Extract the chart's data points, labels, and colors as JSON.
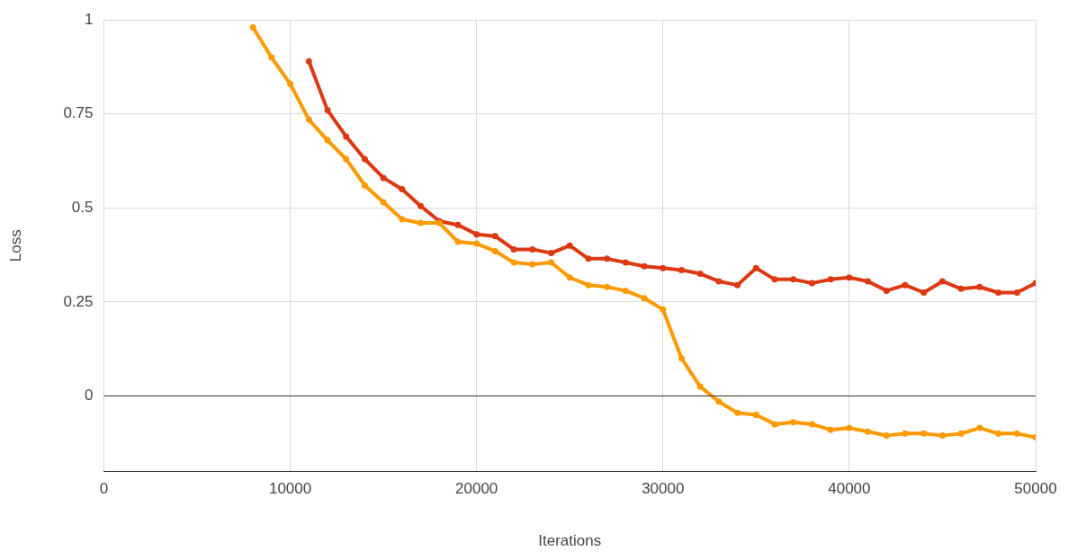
{
  "chart_data": {
    "type": "line",
    "xlabel": "Iterations",
    "ylabel": "Loss",
    "xlim": [
      0,
      50000
    ],
    "xticks": [
      0,
      10000,
      20000,
      30000,
      40000,
      50000
    ],
    "ylim": [
      -0.2,
      1
    ],
    "yticks": [
      0,
      0.25,
      0.5,
      0.75,
      1
    ],
    "grid": true,
    "legend": false,
    "marker": "circle",
    "line_style": "solid",
    "series": [
      {
        "color": "#ff9900",
        "x": [
          8000,
          9000,
          10000,
          11000,
          12000,
          13000,
          14000,
          15000,
          16000,
          17000,
          18000,
          19000,
          20000,
          21000,
          22000,
          23000,
          24000,
          25000,
          26000,
          27000,
          28000,
          29000,
          30000,
          31000,
          32000,
          33000,
          34000,
          35000,
          36000,
          37000,
          38000,
          39000,
          40000,
          41000,
          42000,
          43000,
          44000,
          45000,
          46000,
          47000,
          48000,
          49000,
          50000
        ],
        "values": [
          0.98,
          0.9,
          0.83,
          0.735,
          0.68,
          0.63,
          0.56,
          0.515,
          0.47,
          0.46,
          0.46,
          0.41,
          0.405,
          0.385,
          0.355,
          0.35,
          0.355,
          0.315,
          0.295,
          0.29,
          0.28,
          0.26,
          0.23,
          0.1,
          0.025,
          -0.015,
          -0.045,
          -0.05,
          -0.075,
          -0.07,
          -0.075,
          -0.09,
          -0.085,
          -0.095,
          -0.105,
          -0.1,
          -0.1,
          -0.105,
          -0.1,
          -0.085,
          -0.1,
          -0.1,
          -0.11
        ]
      },
      {
        "color": "#dc3912",
        "x": [
          11000,
          12000,
          13000,
          14000,
          15000,
          16000,
          17000,
          18000,
          19000,
          20000,
          21000,
          22000,
          23000,
          24000,
          25000,
          26000,
          27000,
          28000,
          29000,
          30000,
          31000,
          32000,
          33000,
          34000,
          35000,
          36000,
          37000,
          38000,
          39000,
          40000,
          41000,
          42000,
          43000,
          44000,
          45000,
          46000,
          47000,
          48000,
          49000,
          50000
        ],
        "values": [
          0.89,
          0.76,
          0.69,
          0.63,
          0.58,
          0.55,
          0.505,
          0.465,
          0.455,
          0.43,
          0.425,
          0.39,
          0.39,
          0.38,
          0.4,
          0.365,
          0.365,
          0.355,
          0.345,
          0.34,
          0.335,
          0.325,
          0.305,
          0.295,
          0.34,
          0.31,
          0.31,
          0.3,
          0.31,
          0.315,
          0.305,
          0.28,
          0.295,
          0.275,
          0.305,
          0.285,
          0.29,
          0.275,
          0.275,
          0.3
        ]
      }
    ]
  }
}
